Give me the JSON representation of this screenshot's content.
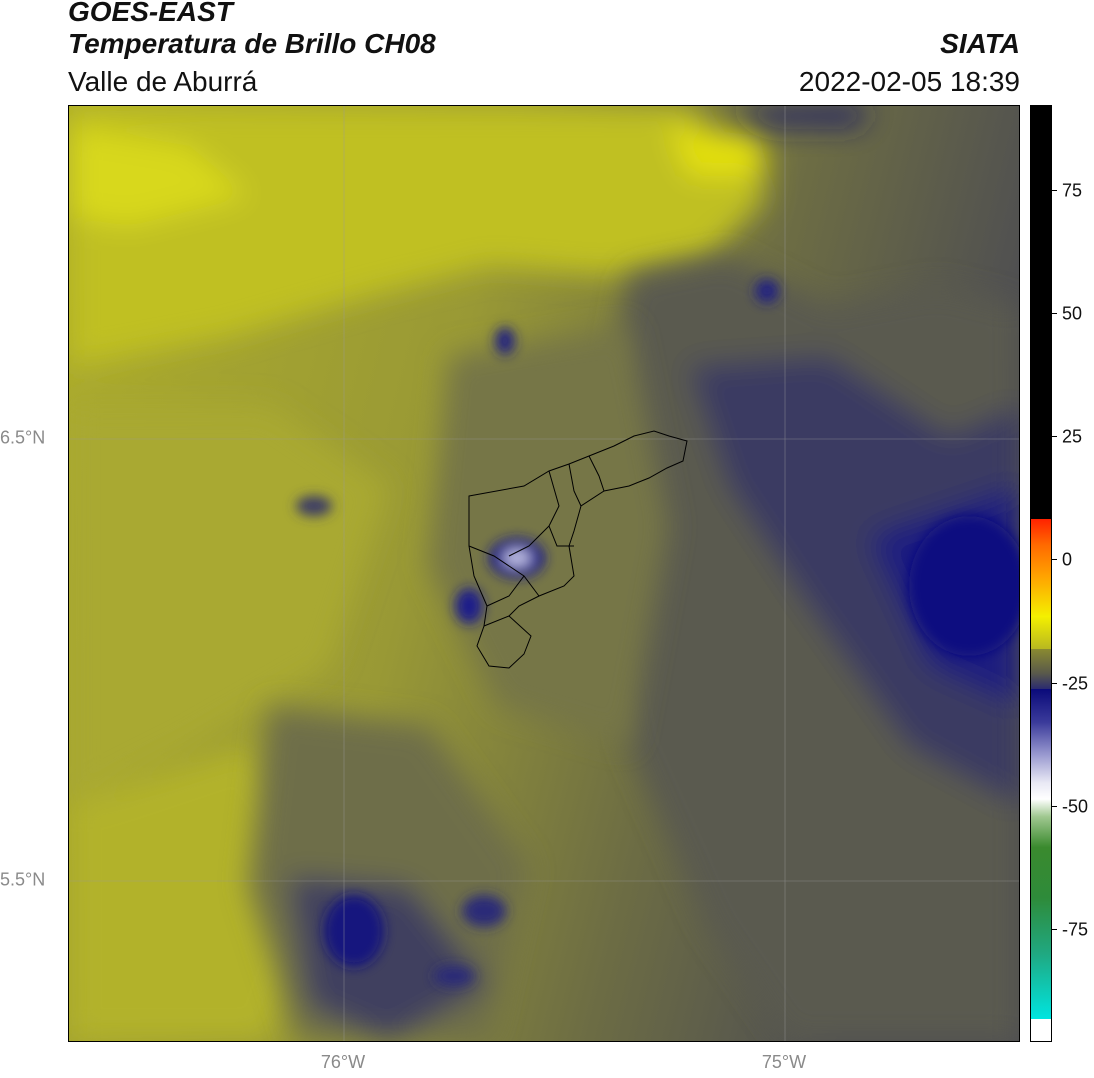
{
  "header": {
    "title_line1": "GOES-EAST",
    "title_line2": "Temperatura de Brillo CH08",
    "subtitle": "Valle de Aburrá",
    "organization": "SIATA",
    "datetime": "2022-02-05 18:39"
  },
  "map": {
    "latitude_labels": [
      "6.5°N",
      "5.5°N"
    ],
    "longitude_labels": [
      "76°W",
      "75°W"
    ]
  },
  "colorbar": {
    "tick_labels": [
      "75",
      "50",
      "25",
      "0",
      "-25",
      "-50",
      "-75"
    ],
    "colors": {
      "black": "#000000",
      "red": "#ff2200",
      "orange": "#ff8c00",
      "yellow": "#f4f000",
      "olive": "#8a8a30",
      "navy": "#0a0a7a",
      "white": "#ffffff",
      "green": "#2e8b2e",
      "cyan": "#00e5e0"
    }
  }
}
